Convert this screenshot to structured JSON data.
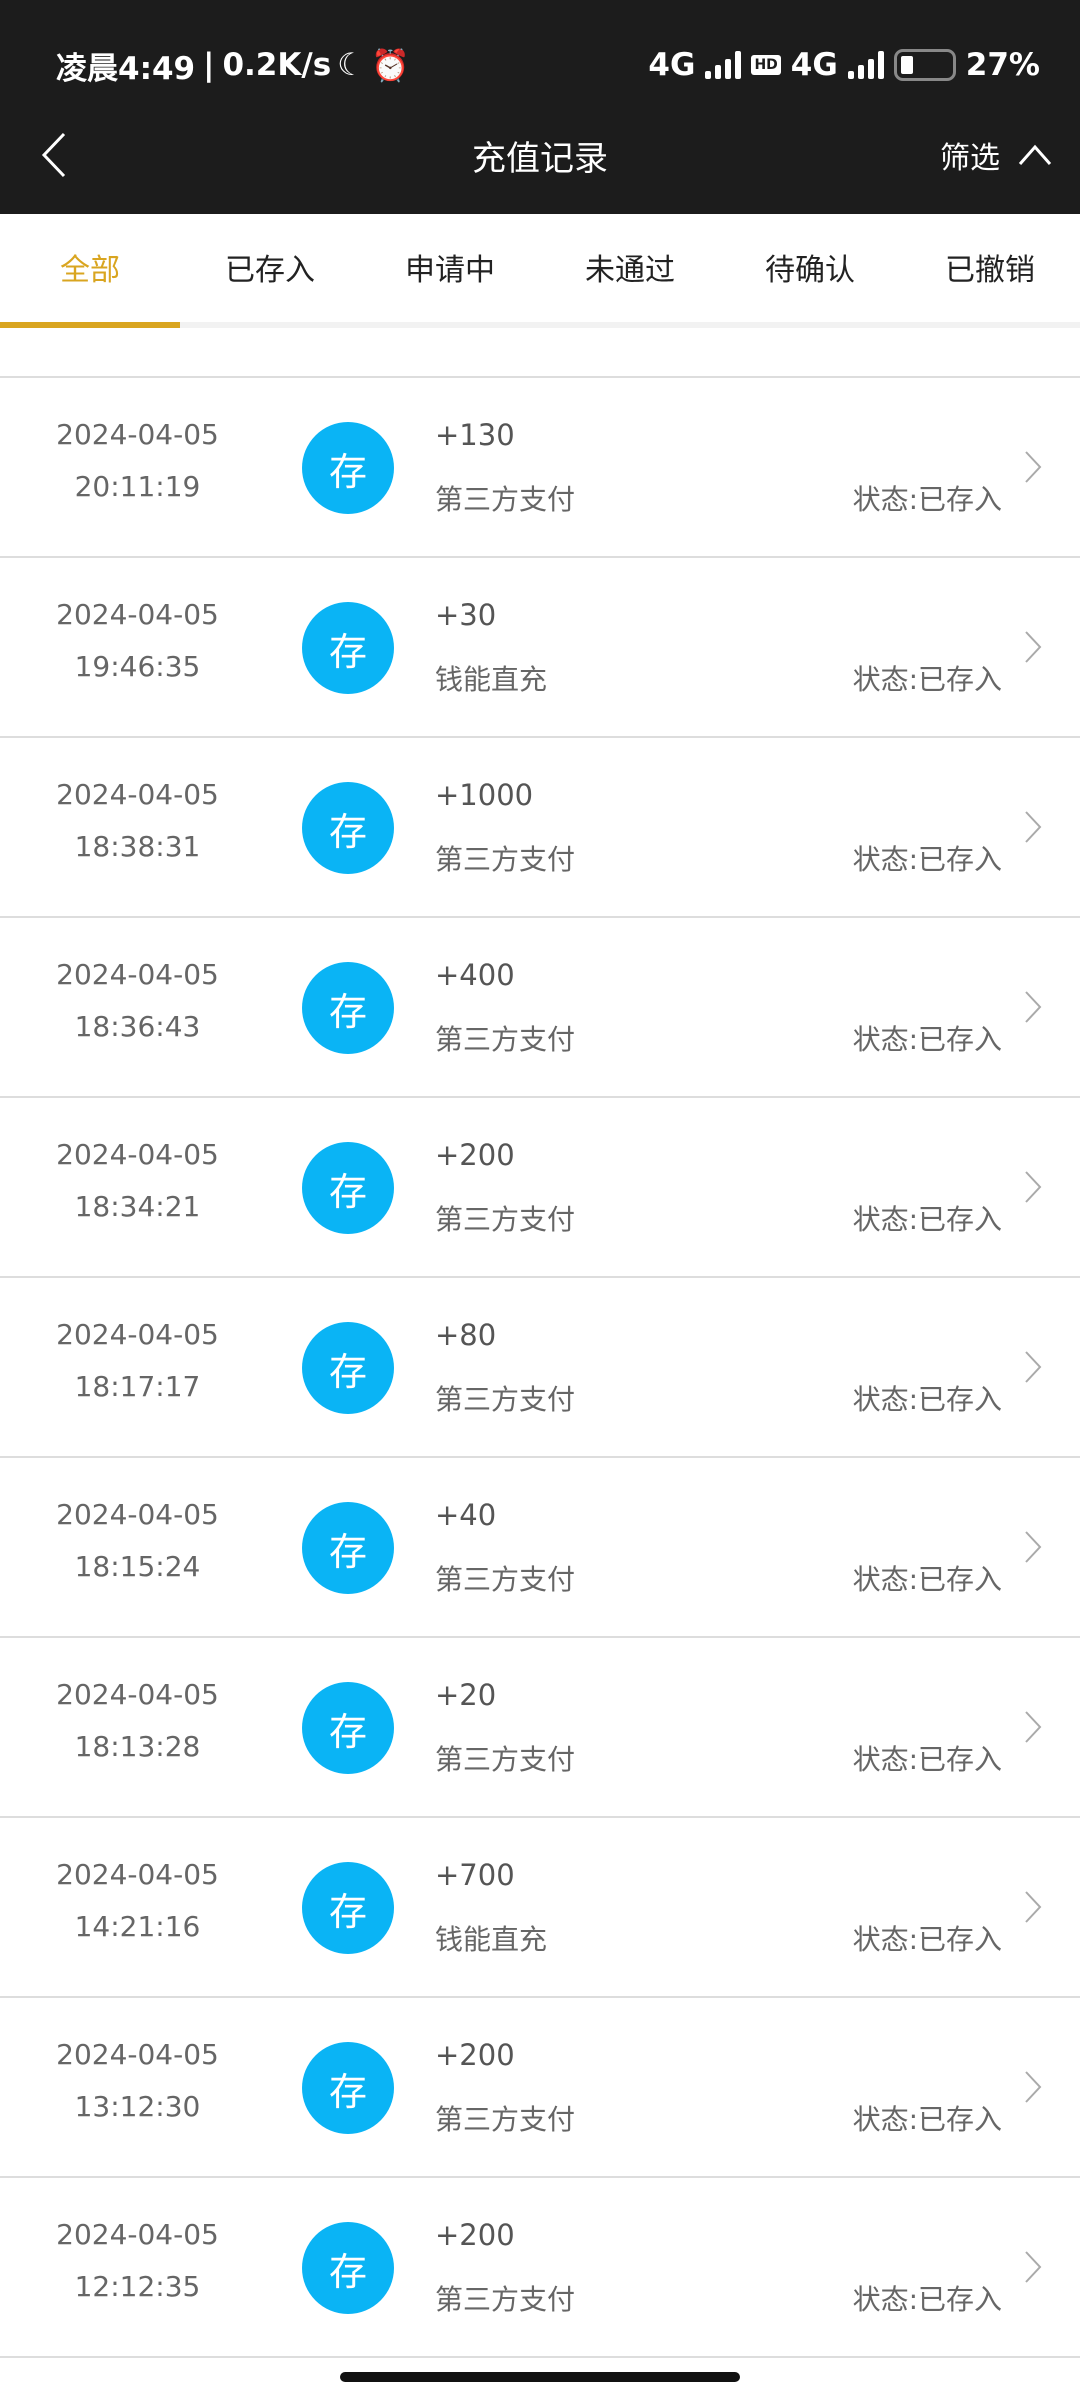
{
  "status_bar": {
    "time": "凌晨4:49",
    "speed": "0.2K/s",
    "net1": "4G",
    "net2": "4G",
    "hd": "HD",
    "battery": "27%"
  },
  "header": {
    "title": "充值记录",
    "filter": "筛选"
  },
  "tabs": [
    {
      "label": "全部",
      "active": true
    },
    {
      "label": "已存入"
    },
    {
      "label": "申请中"
    },
    {
      "label": "未通过"
    },
    {
      "label": "待确认"
    },
    {
      "label": "已撤销"
    }
  ],
  "accent_color": "#d9a520",
  "badge_color": "#0ab4f5",
  "records": [
    {
      "date": "2024-04-05",
      "time": "20:11:19",
      "badge": "存",
      "amount": "+130",
      "method": "第三方支付",
      "status": "状态:已存入"
    },
    {
      "date": "2024-04-05",
      "time": "19:46:35",
      "badge": "存",
      "amount": "+30",
      "method": "钱能直充",
      "status": "状态:已存入"
    },
    {
      "date": "2024-04-05",
      "time": "18:38:31",
      "badge": "存",
      "amount": "+1000",
      "method": "第三方支付",
      "status": "状态:已存入"
    },
    {
      "date": "2024-04-05",
      "time": "18:36:43",
      "badge": "存",
      "amount": "+400",
      "method": "第三方支付",
      "status": "状态:已存入"
    },
    {
      "date": "2024-04-05",
      "time": "18:34:21",
      "badge": "存",
      "amount": "+200",
      "method": "第三方支付",
      "status": "状态:已存入"
    },
    {
      "date": "2024-04-05",
      "time": "18:17:17",
      "badge": "存",
      "amount": "+80",
      "method": "第三方支付",
      "status": "状态:已存入"
    },
    {
      "date": "2024-04-05",
      "time": "18:15:24",
      "badge": "存",
      "amount": "+40",
      "method": "第三方支付",
      "status": "状态:已存入"
    },
    {
      "date": "2024-04-05",
      "time": "18:13:28",
      "badge": "存",
      "amount": "+20",
      "method": "第三方支付",
      "status": "状态:已存入"
    },
    {
      "date": "2024-04-05",
      "time": "14:21:16",
      "badge": "存",
      "amount": "+700",
      "method": "钱能直充",
      "status": "状态:已存入"
    },
    {
      "date": "2024-04-05",
      "time": "13:12:30",
      "badge": "存",
      "amount": "+200",
      "method": "第三方支付",
      "status": "状态:已存入"
    },
    {
      "date": "2024-04-05",
      "time": "12:12:35",
      "badge": "存",
      "amount": "+200",
      "method": "第三方支付",
      "status": "状态:已存入"
    }
  ]
}
